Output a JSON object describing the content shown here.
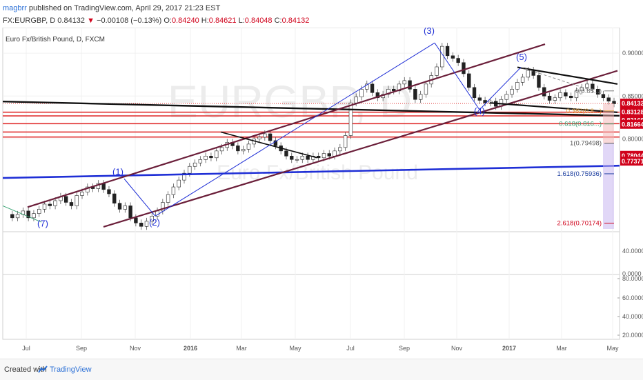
{
  "header": {
    "user": "magbrr",
    "published_text": "published on TradingView.com, April 29, 2017 21:23 EST",
    "symbol_text": "FX:EURGBP, D",
    "last": "0.84132",
    "change": "−0.00108 (−0.13%)",
    "o_label": "O:",
    "o": "0.84240",
    "h_label": "H:",
    "h": "0.84621",
    "l_label": "L:",
    "l": "0.84048",
    "c_label": "C:",
    "c": "0.84132"
  },
  "footer": {
    "created_with": "Created with",
    "brand": "TradingView"
  },
  "chart_data": {
    "type": "candlestick",
    "title": "Euro Fx/British Pound, D, FXCM",
    "watermark": "EURGBP, D",
    "watermark_sub": "Euro Fx/British Pound",
    "x_ticks": [
      "Jul",
      "Sep",
      "Nov",
      "2016",
      "Mar",
      "May",
      "Jul",
      "Sep",
      "Nov",
      "2017",
      "Mar",
      "May"
    ],
    "y_ticks": [
      "0.90000",
      "0.85000",
      "0.80000"
    ],
    "ylim": [
      0.695,
      0.925
    ],
    "price_line": 0.84132,
    "price_labels": [
      {
        "text": "0.84132",
        "value": 0.84132,
        "color": "#d0021b"
      },
      {
        "text": "0.83128",
        "value": 0.83128,
        "color": "#d0021b"
      },
      {
        "text": "0.82169",
        "value": 0.82169,
        "color": "#d0021b"
      },
      {
        "text": "0.81664",
        "value": 0.81664,
        "color": "#d0021b"
      },
      {
        "text": "0.78044",
        "value": 0.78044,
        "color": "#d0021b"
      },
      {
        "text": "0.77371",
        "value": 0.77371,
        "color": "#d0021b"
      }
    ],
    "fib_levels": [
      {
        "label": "0(0.85...)",
        "value": 0.856,
        "color": "#777777"
      },
      {
        "label": "0.382(0.8...)",
        "value": 0.8327,
        "color": "#e6a23c"
      },
      {
        "label": "0.618(0.816...)",
        "value": 0.8175,
        "color": "#3aa374"
      },
      {
        "label": "1(0.79498)",
        "value": 0.79498,
        "color": "#555555"
      },
      {
        "label": "1.618(0.75936)",
        "value": 0.75936,
        "color": "#1a3c9e"
      },
      {
        "label": "2.618(0.70174)",
        "value": 0.70174,
        "color": "#d0021b"
      }
    ],
    "waves": [
      "(1)",
      "(2)",
      "(3)",
      "(4)",
      "(5)",
      "(7)"
    ],
    "sub1_ticks": [
      "40.0000",
      "0.0000"
    ],
    "sub2_ticks": [
      "80.0000",
      "60.0000",
      "40.0000",
      "20.0000"
    ],
    "series_close": [
      0.712,
      0.708,
      0.712,
      0.716,
      0.708,
      0.713,
      0.718,
      0.724,
      0.722,
      0.728,
      0.733,
      0.726,
      0.722,
      0.734,
      0.738,
      0.744,
      0.742,
      0.748,
      0.741,
      0.736,
      0.725,
      0.718,
      0.722,
      0.708,
      0.702,
      0.698,
      0.704,
      0.71,
      0.716,
      0.726,
      0.735,
      0.744,
      0.752,
      0.76,
      0.768,
      0.772,
      0.776,
      0.78,
      0.778,
      0.786,
      0.79,
      0.796,
      0.792,
      0.786,
      0.788,
      0.794,
      0.8,
      0.802,
      0.806,
      0.798,
      0.792,
      0.786,
      0.78,
      0.776,
      0.776,
      0.78,
      0.776,
      0.78,
      0.778,
      0.783,
      0.78,
      0.786,
      0.79,
      0.804,
      0.842,
      0.849,
      0.858,
      0.864,
      0.854,
      0.848,
      0.852,
      0.858,
      0.856,
      0.864,
      0.868,
      0.858,
      0.846,
      0.852,
      0.864,
      0.874,
      0.884,
      0.908,
      0.897,
      0.894,
      0.889,
      0.876,
      0.86,
      0.848,
      0.845,
      0.842,
      0.844,
      0.838,
      0.846,
      0.852,
      0.858,
      0.866,
      0.872,
      0.88,
      0.874,
      0.86,
      0.85,
      0.845,
      0.848,
      0.854,
      0.85,
      0.848,
      0.856,
      0.86,
      0.864,
      0.858,
      0.852,
      0.848,
      0.844,
      0.841
    ]
  }
}
